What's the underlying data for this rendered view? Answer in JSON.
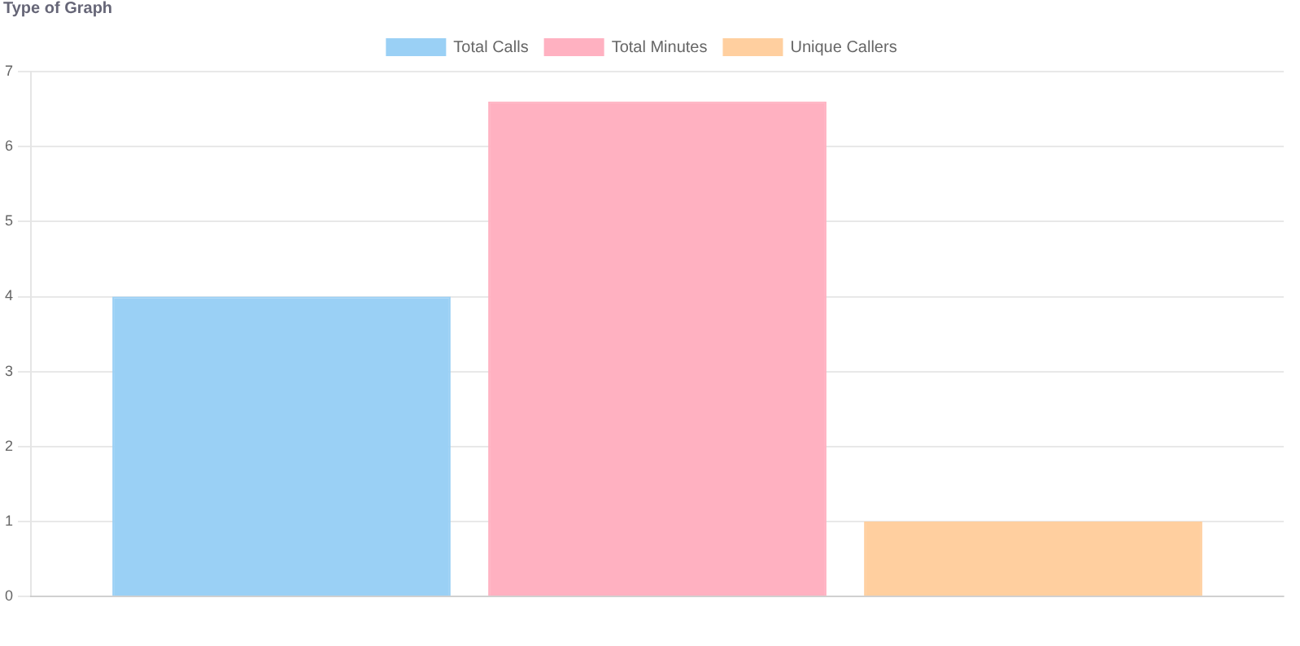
{
  "chart_data": {
    "type": "bar",
    "title": "Type of Graph",
    "categories": [
      null
    ],
    "series": [
      {
        "name": "Total Calls",
        "color": "#9ad0f5",
        "values": [
          4
        ]
      },
      {
        "name": "Total Minutes",
        "color": "#ffb1c1",
        "values": [
          6.6
        ]
      },
      {
        "name": "Unique Callers",
        "color": "#ffcf9f",
        "values": [
          1
        ]
      }
    ],
    "ylim": [
      0,
      7
    ],
    "yticks": [
      0,
      1,
      2,
      3,
      4,
      5,
      6,
      7
    ],
    "grid": "y",
    "legend": "top"
  }
}
